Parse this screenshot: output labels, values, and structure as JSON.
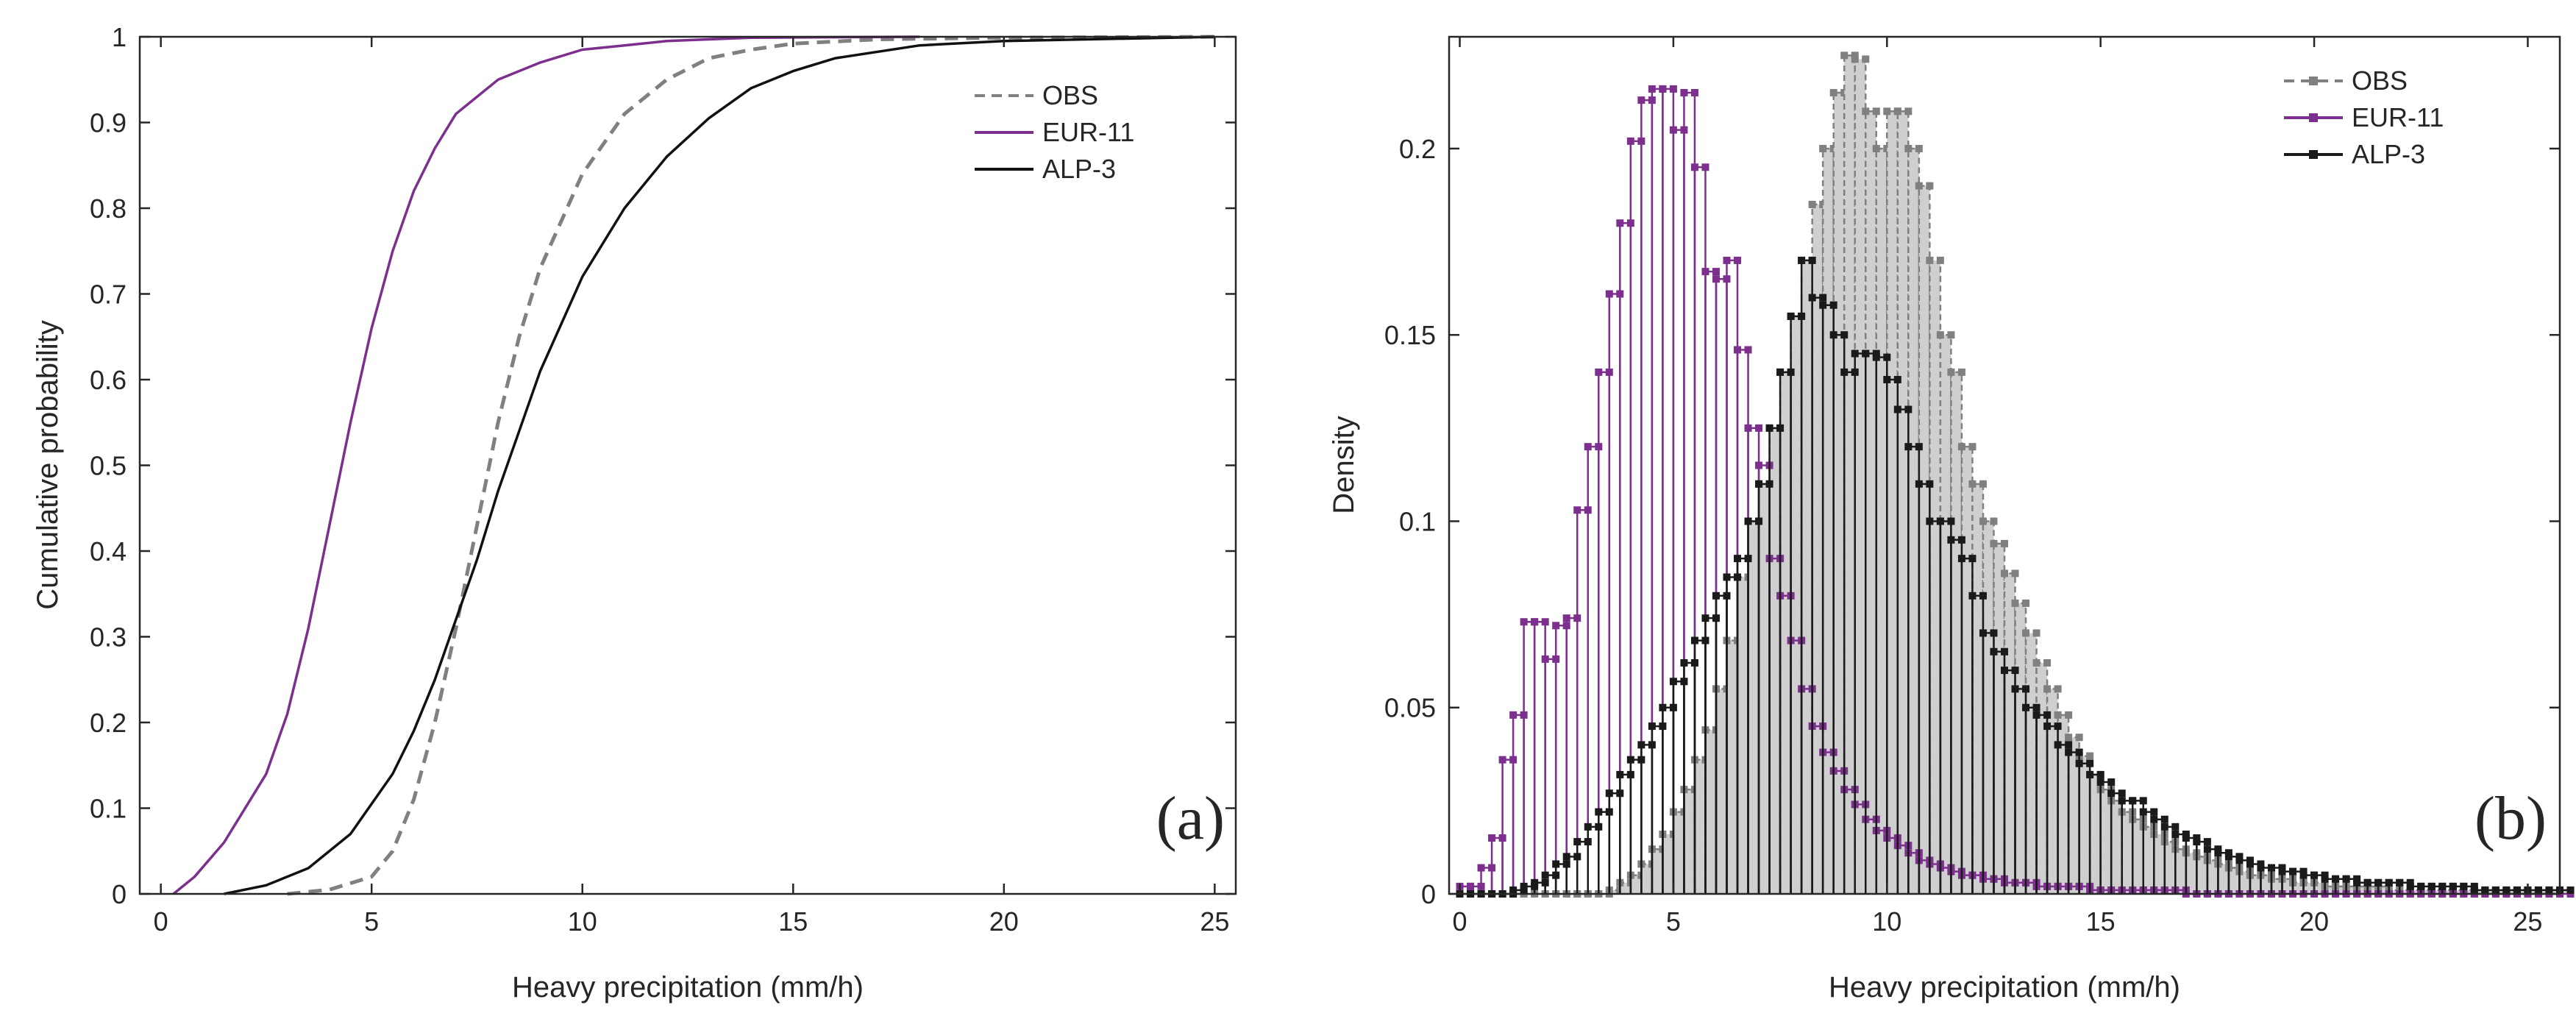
{
  "chart_data": [
    {
      "panel": "(a)",
      "type": "line",
      "title": "",
      "xlabel": "Heavy precipitation (mm/h)",
      "ylabel": "Cumulative probability",
      "xlim": [
        -0.5,
        25.5
      ],
      "ylim": [
        0,
        1
      ],
      "xticks": [
        0,
        5,
        10,
        15,
        20,
        25
      ],
      "yticks": [
        0,
        0.1,
        0.2,
        0.3,
        0.4,
        0.5,
        0.6,
        0.7,
        0.8,
        0.9,
        1
      ],
      "ytick_labels": [
        "0",
        "0.1",
        "0.2",
        "0.3",
        "0.4",
        "0.5",
        "0.6",
        "0.7",
        "0.8",
        "0.9",
        "1"
      ],
      "grid": false,
      "legend_position": "top-right",
      "series": [
        {
          "name": "OBS",
          "color": "#808080",
          "style": "dashed",
          "x": [
            3.0,
            4.0,
            5.0,
            5.5,
            6.0,
            6.5,
            7.0,
            7.5,
            8.0,
            8.5,
            9.0,
            10.0,
            11.0,
            12.0,
            13.0,
            14.0,
            15.0,
            17.0,
            20.0,
            25.0
          ],
          "y": [
            0.0,
            0.005,
            0.02,
            0.05,
            0.11,
            0.2,
            0.31,
            0.43,
            0.55,
            0.65,
            0.73,
            0.84,
            0.91,
            0.95,
            0.975,
            0.985,
            0.992,
            0.997,
            0.999,
            1.0
          ]
        },
        {
          "name": "EUR-11",
          "color": "#7d2f8e",
          "style": "solid",
          "x": [
            0.3,
            0.8,
            1.5,
            2.5,
            3.0,
            3.5,
            4.0,
            4.5,
            5.0,
            5.5,
            6.0,
            6.5,
            7.0,
            8.0,
            9.0,
            10.0,
            11.0,
            12.0,
            14.0,
            18.0
          ],
          "y": [
            0.0,
            0.02,
            0.06,
            0.14,
            0.21,
            0.31,
            0.43,
            0.55,
            0.66,
            0.75,
            0.82,
            0.87,
            0.91,
            0.95,
            0.97,
            0.985,
            0.99,
            0.995,
            0.999,
            1.0
          ]
        },
        {
          "name": "ALP-3",
          "color": "#111111",
          "style": "solid",
          "x": [
            1.5,
            2.5,
            3.5,
            4.5,
            5.5,
            6.0,
            6.5,
            7.0,
            7.5,
            8.0,
            8.5,
            9.0,
            10.0,
            11.0,
            12.0,
            13.0,
            14.0,
            15.0,
            16.0,
            18.0,
            20.0,
            25.0
          ],
          "y": [
            0.0,
            0.01,
            0.03,
            0.07,
            0.14,
            0.19,
            0.25,
            0.32,
            0.39,
            0.47,
            0.54,
            0.61,
            0.72,
            0.8,
            0.86,
            0.905,
            0.94,
            0.96,
            0.975,
            0.99,
            0.995,
            1.0
          ]
        }
      ],
      "panel_label": "(a)"
    },
    {
      "panel": "(b)",
      "type": "bar",
      "title": "",
      "xlabel": "Heavy precipitation (mm/h)",
      "ylabel": "Density",
      "xlim": [
        -0.25,
        25.75
      ],
      "ylim": [
        0,
        0.23
      ],
      "xticks": [
        0,
        5,
        10,
        15,
        20,
        25
      ],
      "yticks": [
        0,
        0.05,
        0.1,
        0.15,
        0.2
      ],
      "ytick_labels": [
        "0",
        "0.05",
        "0.1",
        "0.15",
        "0.2"
      ],
      "grid": false,
      "legend_position": "top-right",
      "bin_width": 0.25,
      "bin_start": 0.0,
      "series": [
        {
          "name": "OBS",
          "color": "#808080",
          "fill": "#cfcfcf",
          "style": "dashed-stem",
          "values": [
            0,
            0,
            0,
            0,
            0,
            0,
            0,
            0,
            0,
            0,
            0,
            0,
            0,
            0,
            0.001,
            0.003,
            0.005,
            0.008,
            0.012,
            0.016,
            0.022,
            0.028,
            0.036,
            0.044,
            0.055,
            0.068,
            0.085,
            0.1,
            0.11,
            0.125,
            0.14,
            0.155,
            0.17,
            0.185,
            0.2,
            0.215,
            0.225,
            0.224,
            0.21,
            0.2,
            0.21,
            0.21,
            0.2,
            0.19,
            0.17,
            0.15,
            0.14,
            0.12,
            0.11,
            0.1,
            0.094,
            0.086,
            0.078,
            0.07,
            0.062,
            0.055,
            0.048,
            0.042,
            0.037,
            0.032,
            0.028,
            0.025,
            0.022,
            0.02,
            0.018,
            0.016,
            0.014,
            0.012,
            0.011,
            0.01,
            0.009,
            0.008,
            0.007,
            0.006,
            0.005,
            0.005,
            0.004,
            0.004,
            0.003,
            0.003,
            0.003,
            0.002,
            0.002,
            0.002,
            0.002,
            0.002,
            0.002,
            0.001,
            0.001,
            0.001,
            0.001,
            0.001,
            0.001,
            0.001,
            0.001,
            0.001,
            0.001,
            0.001,
            0.001,
            0.001,
            0.001,
            0.001,
            0.001,
            0.001
          ]
        },
        {
          "name": "EUR-11",
          "color": "#7d2f8e",
          "style": "solid-stem",
          "values": [
            0.002,
            0.002,
            0.007,
            0.015,
            0.036,
            0.048,
            0.073,
            0.073,
            0.063,
            0.072,
            0.074,
            0.103,
            0.12,
            0.14,
            0.161,
            0.18,
            0.202,
            0.213,
            0.216,
            0.216,
            0.205,
            0.215,
            0.195,
            0.167,
            0.165,
            0.17,
            0.146,
            0.125,
            0.115,
            0.09,
            0.08,
            0.068,
            0.055,
            0.045,
            0.038,
            0.033,
            0.028,
            0.024,
            0.02,
            0.017,
            0.015,
            0.013,
            0.011,
            0.009,
            0.008,
            0.007,
            0.006,
            0.005,
            0.005,
            0.004,
            0.004,
            0.003,
            0.003,
            0.003,
            0.002,
            0.002,
            0.002,
            0.002,
            0.002,
            0.001,
            0.001,
            0.001,
            0.001,
            0.001,
            0.001,
            0.001,
            0.001,
            0.001,
            0,
            0,
            0,
            0,
            0,
            0,
            0,
            0,
            0,
            0,
            0,
            0,
            0,
            0,
            0,
            0,
            0,
            0,
            0,
            0,
            0,
            0,
            0,
            0,
            0,
            0,
            0,
            0,
            0,
            0,
            0,
            0,
            0,
            0,
            0,
            0
          ]
        },
        {
          "name": "ALP-3",
          "color": "#1a1a1a",
          "style": "solid-stem",
          "values": [
            0,
            0,
            0,
            0,
            0,
            0.001,
            0.002,
            0.003,
            0.005,
            0.008,
            0.01,
            0.014,
            0.018,
            0.022,
            0.027,
            0.032,
            0.036,
            0.04,
            0.045,
            0.05,
            0.057,
            0.062,
            0.068,
            0.074,
            0.08,
            0.085,
            0.09,
            0.1,
            0.11,
            0.125,
            0.14,
            0.155,
            0.17,
            0.16,
            0.158,
            0.15,
            0.14,
            0.145,
            0.145,
            0.144,
            0.138,
            0.13,
            0.12,
            0.11,
            0.1,
            0.1,
            0.095,
            0.09,
            0.08,
            0.07,
            0.065,
            0.06,
            0.055,
            0.05,
            0.048,
            0.045,
            0.04,
            0.038,
            0.035,
            0.032,
            0.03,
            0.027,
            0.025,
            0.025,
            0.022,
            0.02,
            0.018,
            0.016,
            0.015,
            0.014,
            0.012,
            0.011,
            0.01,
            0.009,
            0.008,
            0.007,
            0.007,
            0.006,
            0.006,
            0.005,
            0.005,
            0.004,
            0.004,
            0.004,
            0.003,
            0.003,
            0.003,
            0.003,
            0.003,
            0.002,
            0.002,
            0.002,
            0.002,
            0.002,
            0.002,
            0.001,
            0.001,
            0.001,
            0.001,
            0.001,
            0.001,
            0.001,
            0.001,
            0.001
          ]
        }
      ],
      "panel_label": "(b)"
    }
  ]
}
